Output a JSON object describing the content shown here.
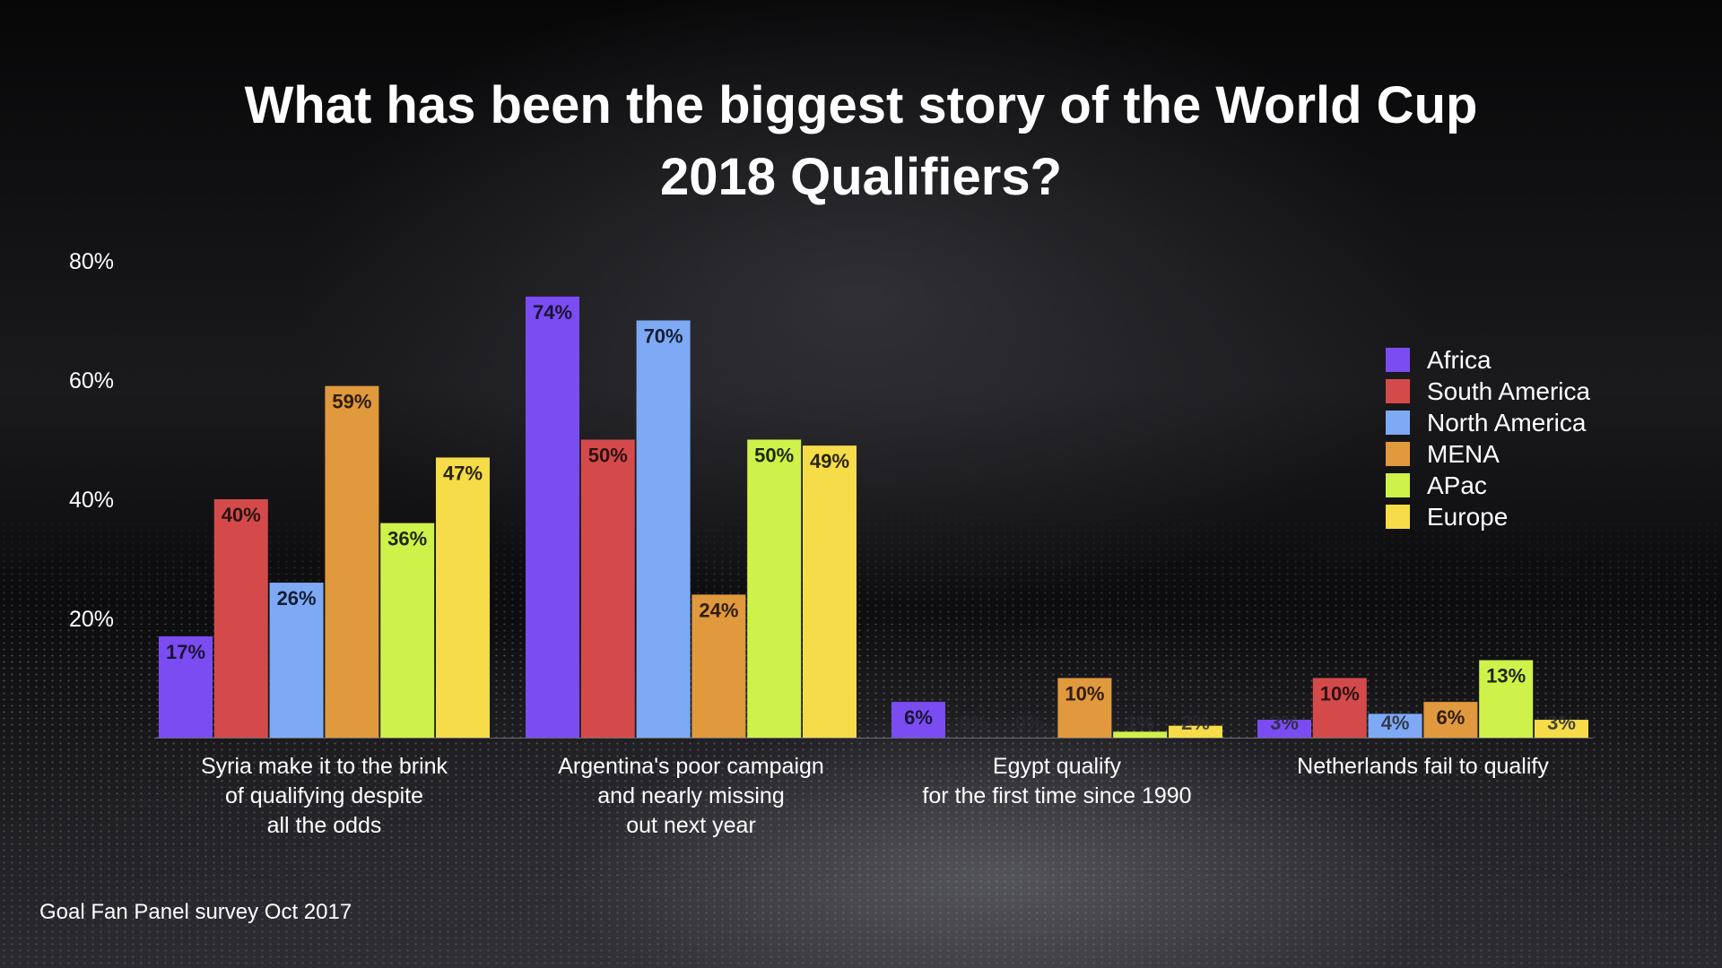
{
  "title_lines": [
    "What has been the biggest story of the World Cup",
    "2018 Qualifiers?"
  ],
  "source": "Goal Fan Panel survey Oct 2017",
  "chart_data": {
    "type": "bar",
    "title": "What has been the biggest story of the World Cup 2018 Qualifiers?",
    "xlabel": "",
    "ylabel": "",
    "ylim": [
      0,
      80
    ],
    "yticks": [
      20,
      40,
      60,
      80
    ],
    "ytick_labels": [
      "20%",
      "40%",
      "60%",
      "80%"
    ],
    "grid": false,
    "legend_position": "right",
    "categories": [
      [
        "Syria make it to the brink",
        "of qualifying despite",
        "all the odds"
      ],
      [
        "Argentina's poor campaign",
        "and nearly missing",
        "out next year"
      ],
      [
        "Egypt qualify",
        "for the first time since 1990"
      ],
      [
        "Netherlands fail to qualify"
      ]
    ],
    "series": [
      {
        "name": "Africa",
        "color": "#7A4CF2",
        "label_color": "#1A1433",
        "values": [
          17,
          74,
          6,
          3
        ],
        "labels": [
          "17%",
          "74%",
          "6%",
          "3%"
        ]
      },
      {
        "name": "South America",
        "color": "#D44A4A",
        "label_color": "#2B1212",
        "values": [
          40,
          50,
          0,
          10
        ],
        "labels": [
          "40%",
          "50%",
          "0%",
          "10%"
        ]
      },
      {
        "name": "North America",
        "color": "#7EAAF5",
        "label_color": "#141C33",
        "values": [
          26,
          70,
          0,
          4
        ],
        "labels": [
          "26%",
          "70%",
          "0%",
          "4%"
        ]
      },
      {
        "name": "MENA",
        "color": "#E0993D",
        "label_color": "#2E1D0A",
        "values": [
          59,
          24,
          10,
          6
        ],
        "labels": [
          "59%",
          "24%",
          "10%",
          "6%"
        ]
      },
      {
        "name": "APac",
        "color": "#CFF24A",
        "label_color": "#1E260A",
        "values": [
          36,
          50,
          1,
          13
        ],
        "labels": [
          "36%",
          "50%",
          "1%",
          "13%"
        ]
      },
      {
        "name": "Europe",
        "color": "#F5DC48",
        "label_color": "#2A240A",
        "values": [
          47,
          49,
          2,
          3
        ],
        "labels": [
          "47%",
          "49%",
          "2%",
          "3%"
        ]
      }
    ]
  }
}
